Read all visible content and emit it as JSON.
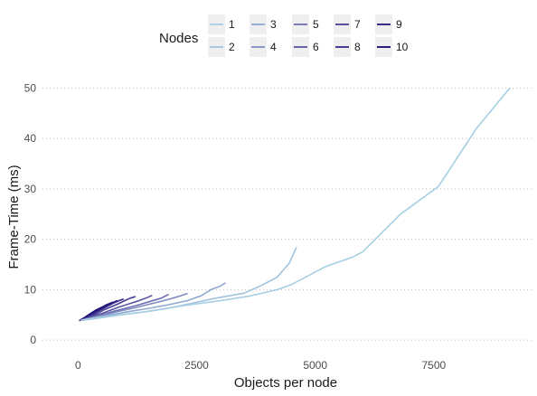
{
  "chart_data": {
    "type": "line",
    "title": "",
    "xlabel": "Objects per node",
    "ylabel": "Frame-Time (ms)",
    "xlim": [
      -750,
      9600
    ],
    "ylim": [
      -2.5,
      53.5
    ],
    "x_ticks": [
      0,
      2500,
      5000,
      7500
    ],
    "x_tick_labels": [
      "0",
      "2500",
      "5000",
      "7500"
    ],
    "y_ticks": [
      0,
      10,
      20,
      30,
      40,
      50
    ],
    "y_tick_labels": [
      "0",
      "10",
      "20",
      "30",
      "40",
      "50"
    ],
    "grid": "horizontal dotted",
    "legend": {
      "title": "Nodes",
      "position": "top",
      "columns": 5
    },
    "series": [
      {
        "name": "1",
        "color": "#a6cfe3",
        "points": [
          [
            100,
            4
          ],
          [
            450,
            4.5
          ],
          [
            900,
            5
          ],
          [
            1500,
            5.7
          ],
          [
            2200,
            6.8
          ],
          [
            3000,
            7.8
          ],
          [
            3600,
            8.7
          ],
          [
            4200,
            10
          ],
          [
            4500,
            11
          ],
          [
            4800,
            12.5
          ],
          [
            5200,
            14.5
          ],
          [
            5800,
            16.5
          ],
          [
            6000,
            17.5
          ],
          [
            6800,
            25
          ],
          [
            7600,
            30.5
          ],
          [
            8400,
            42
          ],
          [
            9100,
            50
          ]
        ]
      },
      {
        "name": "2",
        "color": "#9fc3de",
        "points": [
          [
            80,
            3.9
          ],
          [
            400,
            4.3
          ],
          [
            900,
            5
          ],
          [
            1400,
            5.6
          ],
          [
            1900,
            6.3
          ],
          [
            2400,
            7.3
          ],
          [
            2900,
            8.3
          ],
          [
            3500,
            9.3
          ],
          [
            3900,
            11
          ],
          [
            4200,
            12.5
          ],
          [
            4450,
            15.2
          ],
          [
            4600,
            18.3
          ]
        ]
      },
      {
        "name": "3",
        "color": "#8fa8d0",
        "points": [
          [
            70,
            3.9
          ],
          [
            350,
            4.4
          ],
          [
            700,
            5
          ],
          [
            1100,
            5.7
          ],
          [
            1500,
            6.3
          ],
          [
            1900,
            7
          ],
          [
            2300,
            7.8
          ],
          [
            2600,
            8.8
          ],
          [
            2800,
            10
          ],
          [
            3000,
            10.7
          ],
          [
            3100,
            11.3
          ]
        ]
      },
      {
        "name": "4",
        "color": "#7f8cc2",
        "points": [
          [
            65,
            3.9
          ],
          [
            300,
            4.4
          ],
          [
            600,
            5.1
          ],
          [
            900,
            5.8
          ],
          [
            1200,
            6.4
          ],
          [
            1500,
            7.1
          ],
          [
            1800,
            7.8
          ],
          [
            2100,
            8.6
          ],
          [
            2300,
            9.2
          ]
        ]
      },
      {
        "name": "5",
        "color": "#6c6fb2",
        "points": [
          [
            60,
            3.9
          ],
          [
            250,
            4.4
          ],
          [
            500,
            5
          ],
          [
            750,
            5.7
          ],
          [
            1000,
            6.3
          ],
          [
            1250,
            6.9
          ],
          [
            1500,
            7.6
          ],
          [
            1750,
            8.3
          ],
          [
            1900,
            9
          ]
        ]
      },
      {
        "name": "6",
        "color": "#5a56a3",
        "points": [
          [
            55,
            3.9
          ],
          [
            220,
            4.4
          ],
          [
            450,
            5.1
          ],
          [
            650,
            5.8
          ],
          [
            850,
            6.5
          ],
          [
            1050,
            7.1
          ],
          [
            1250,
            7.7
          ],
          [
            1450,
            8.4
          ],
          [
            1550,
            8.8
          ]
        ]
      },
      {
        "name": "7",
        "color": "#473e95",
        "points": [
          [
            50,
            3.9
          ],
          [
            200,
            4.4
          ],
          [
            400,
            5.2
          ],
          [
            550,
            6
          ],
          [
            700,
            6.6
          ],
          [
            850,
            7.2
          ],
          [
            1000,
            7.9
          ],
          [
            1100,
            8.3
          ],
          [
            1200,
            8.6
          ]
        ]
      },
      {
        "name": "8",
        "color": "#352a88",
        "points": [
          [
            45,
            3.9
          ],
          [
            180,
            4.4
          ],
          [
            350,
            5.3
          ],
          [
            500,
            6.1
          ],
          [
            620,
            6.7
          ],
          [
            740,
            7.3
          ],
          [
            860,
            7.8
          ],
          [
            950,
            8.1
          ]
        ]
      },
      {
        "name": "9",
        "color": "#23177b",
        "points": [
          [
            40,
            3.9
          ],
          [
            160,
            4.5
          ],
          [
            300,
            5.3
          ],
          [
            430,
            6
          ],
          [
            550,
            6.6
          ],
          [
            650,
            7.1
          ],
          [
            750,
            7.5
          ],
          [
            820,
            7.8
          ]
        ]
      },
      {
        "name": "10",
        "color": "#130a6e",
        "points": [
          [
            35,
            3.9
          ],
          [
            140,
            4.5
          ],
          [
            270,
            5.3
          ],
          [
            390,
            6
          ],
          [
            500,
            6.5
          ],
          [
            600,
            7
          ],
          [
            680,
            7.3
          ],
          [
            730,
            7.5
          ]
        ]
      }
    ]
  }
}
